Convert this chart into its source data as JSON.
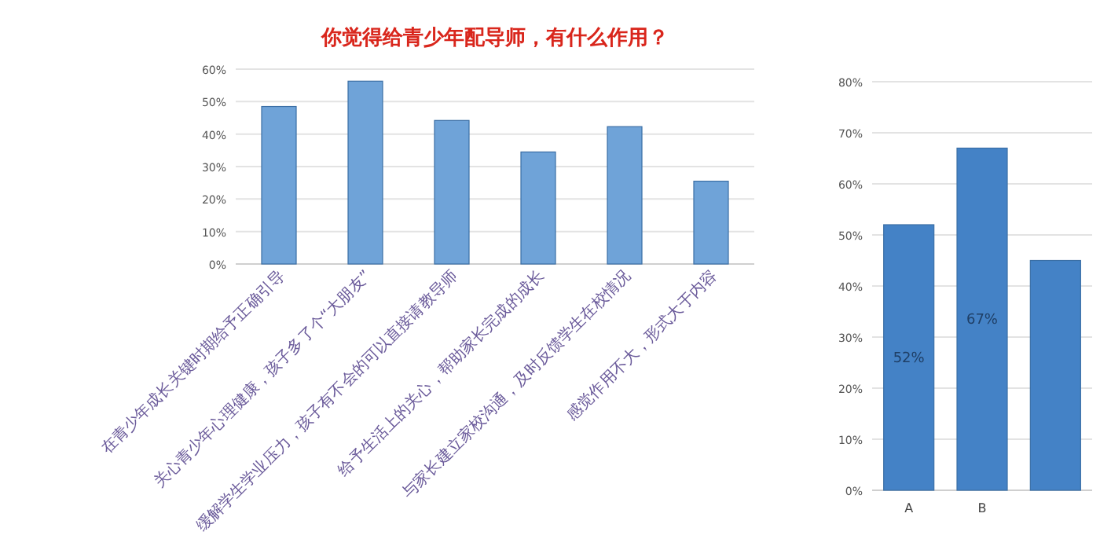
{
  "chart_data": [
    {
      "type": "bar",
      "title": "你觉得给青少年配导师，有什么作用？",
      "categories": [
        "在青少年成长关键时期给予正确引导",
        "关心青少年心理健康，孩子多了个“大朋友”",
        "缓解学生学业压力，孩子有不会的可以直接请教导师",
        "给予生活上的关心，帮助家长完成的成长",
        "与家长建立家校沟通，及时反馈学生在校情况",
        "感觉作用不大，形式大于内容"
      ],
      "values": [
        48.5,
        56.3,
        44.2,
        34.5,
        42.3,
        25.5
      ],
      "color": "#6fa3d8",
      "ylim": [
        0,
        60
      ],
      "yticks": [
        {
          "value": 0,
          "label": "0%"
        },
        {
          "value": 10,
          "label": "10%"
        },
        {
          "value": 20,
          "label": "20%"
        },
        {
          "value": 30,
          "label": "30%"
        },
        {
          "value": 40,
          "label": "40%"
        },
        {
          "value": 50,
          "label": "50%"
        },
        {
          "value": 60,
          "label": "60%"
        }
      ],
      "grid": "y"
    },
    {
      "type": "bar",
      "categories": [
        "A",
        "B",
        null
      ],
      "values": [
        52,
        67,
        45
      ],
      "value_labels": [
        "52%",
        "67%",
        null
      ],
      "color": "#4482c6",
      "ylim": [
        0,
        80
      ],
      "yticks": [
        {
          "value": 0,
          "label": "0%"
        },
        {
          "value": 10,
          "label": "10%"
        },
        {
          "value": 20,
          "label": "20%"
        },
        {
          "value": 30,
          "label": "30%"
        },
        {
          "value": 40,
          "label": "40%"
        },
        {
          "value": 50,
          "label": "50%"
        },
        {
          "value": 60,
          "label": "60%"
        },
        {
          "value": 70,
          "label": "70%"
        },
        {
          "value": 80,
          "label": "80%"
        }
      ],
      "grid": "y"
    }
  ]
}
